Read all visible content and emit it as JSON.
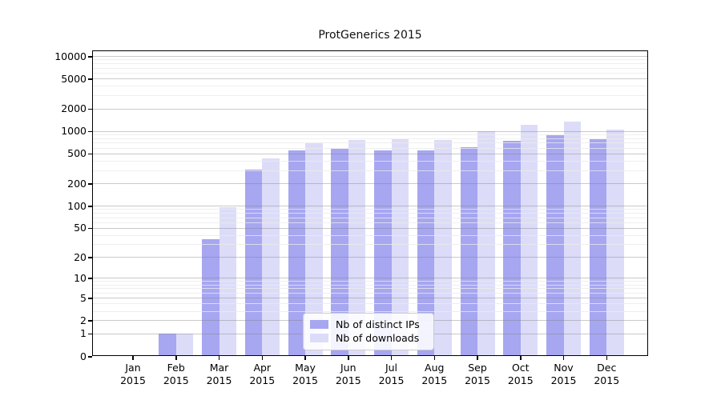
{
  "title": "ProtGenerics 2015",
  "colors": {
    "distinct_ips_bar": "#a6a6f1",
    "downloads_bar": "#dcdcf9",
    "grid_major": "#c9c9c9",
    "grid_minor": "#ebebeb",
    "spine": "#000000"
  },
  "legend": {
    "items": [
      {
        "label": "Nb of distinct IPs",
        "color": "#a6a6f1"
      },
      {
        "label": "Nb of downloads",
        "color": "#dcdcf9"
      }
    ]
  },
  "y_axis": {
    "tick_values": [
      0,
      1,
      2,
      5,
      10,
      20,
      50,
      100,
      200,
      500,
      1000,
      2000,
      5000,
      10000
    ],
    "tick_labels": [
      "0",
      "1",
      "2",
      "5",
      "10",
      "20",
      "50",
      "100",
      "200",
      "500",
      "1000",
      "2000",
      "5000",
      "10000"
    ],
    "minor_grid_values": [
      3,
      4,
      6,
      7,
      8,
      9,
      30,
      40,
      60,
      70,
      80,
      90,
      300,
      400,
      600,
      700,
      800,
      900,
      3000,
      4000,
      6000,
      7000,
      8000,
      9000
    ]
  },
  "x_axis": {
    "categories": [
      "Jan 2015",
      "Feb 2015",
      "Mar 2015",
      "Apr 2015",
      "May 2015",
      "Jun 2015",
      "Jul 2015",
      "Aug 2015",
      "Sep 2015",
      "Oct 2015",
      "Nov 2015",
      "Dec 2015"
    ]
  },
  "chart_data": {
    "type": "bar",
    "title": "ProtGenerics 2015",
    "categories": [
      "Jan 2015",
      "Feb 2015",
      "Mar 2015",
      "Apr 2015",
      "May 2015",
      "Jun 2015",
      "Jul 2015",
      "Aug 2015",
      "Sep 2015",
      "Oct 2015",
      "Nov 2015",
      "Dec 2015"
    ],
    "series": [
      {
        "name": "Nb of distinct IPs",
        "color": "#a6a6f1",
        "values": [
          0,
          1,
          35,
          305,
          555,
          580,
          550,
          550,
          615,
          740,
          890,
          785
        ]
      },
      {
        "name": "Nb of downloads",
        "color": "#dcdcf9",
        "values": [
          0,
          1,
          95,
          430,
          690,
          760,
          785,
          760,
          1000,
          1220,
          1330,
          1045
        ]
      }
    ],
    "xlabel": "",
    "ylabel": "",
    "y_scale": "log1p",
    "ylim": [
      0,
      10000
    ],
    "y_ticks": [
      0,
      1,
      2,
      5,
      10,
      20,
      50,
      100,
      200,
      500,
      1000,
      2000,
      5000,
      10000
    ],
    "grid": true,
    "grid_on_top": true,
    "legend_position": "lower center"
  }
}
